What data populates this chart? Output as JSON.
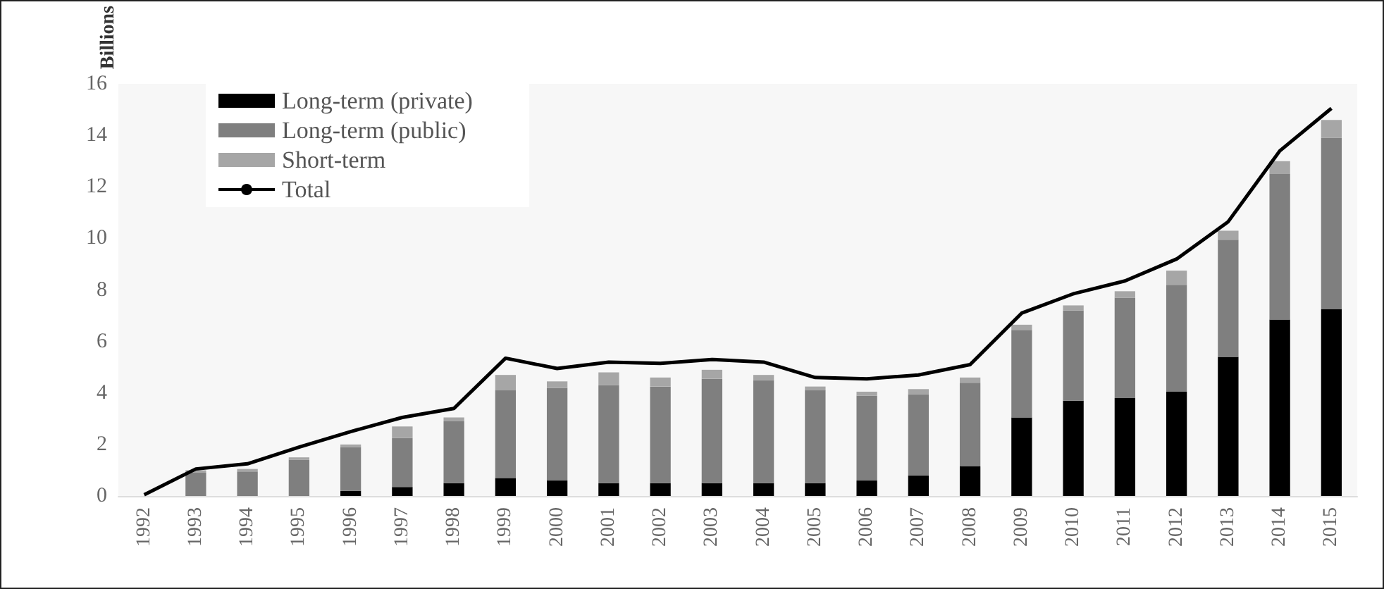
{
  "chart_data": {
    "type": "bar",
    "ylabel": "Billions",
    "stacked": true,
    "categories": [
      "1992",
      "1993",
      "1994",
      "1995",
      "1996",
      "1997",
      "1998",
      "1999",
      "2000",
      "2001",
      "2002",
      "2003",
      "2004",
      "2005",
      "2006",
      "2007",
      "2008",
      "2009",
      "2010",
      "2011",
      "2012",
      "2013",
      "2014",
      "2015"
    ],
    "series": [
      {
        "name": "Long-term (private)",
        "color": "#000000",
        "values": [
          0,
          0,
          0,
          0,
          0.2,
          0.35,
          0.5,
          0.7,
          0.6,
          0.5,
          0.5,
          0.5,
          0.5,
          0.5,
          0.6,
          0.8,
          1.15,
          3.05,
          3.7,
          3.8,
          4.05,
          5.4,
          6.85,
          7.25
        ]
      },
      {
        "name": "Long-term (public)",
        "color": "#7f7f7f",
        "values": [
          0,
          0.9,
          0.95,
          1.4,
          1.7,
          1.9,
          2.4,
          3.4,
          3.6,
          3.8,
          3.75,
          4.05,
          4.0,
          3.6,
          3.3,
          3.15,
          3.25,
          3.4,
          3.5,
          3.9,
          4.15,
          4.55,
          5.65,
          6.65
        ]
      },
      {
        "name": "Short-term",
        "color": "#a6a6a6",
        "values": [
          0,
          0.1,
          0.1,
          0.1,
          0.1,
          0.45,
          0.15,
          0.6,
          0.25,
          0.5,
          0.35,
          0.35,
          0.2,
          0.15,
          0.15,
          0.2,
          0.2,
          0.2,
          0.2,
          0.25,
          0.55,
          0.35,
          0.5,
          0.7
        ]
      },
      {
        "name": "Total",
        "type": "line",
        "color": "#000000",
        "values": [
          0.05,
          1.05,
          1.25,
          1.9,
          2.5,
          3.05,
          3.4,
          5.35,
          4.95,
          5.2,
          5.15,
          5.3,
          5.2,
          4.6,
          4.55,
          4.7,
          5.1,
          7.1,
          7.85,
          8.35,
          9.2,
          10.65,
          13.4,
          15.05
        ]
      }
    ],
    "ylim": [
      0,
      16
    ],
    "yticks": [
      0,
      2,
      4,
      6,
      8,
      10,
      12,
      14,
      16
    ],
    "grid": false,
    "legend": "top left",
    "marker": "none"
  }
}
